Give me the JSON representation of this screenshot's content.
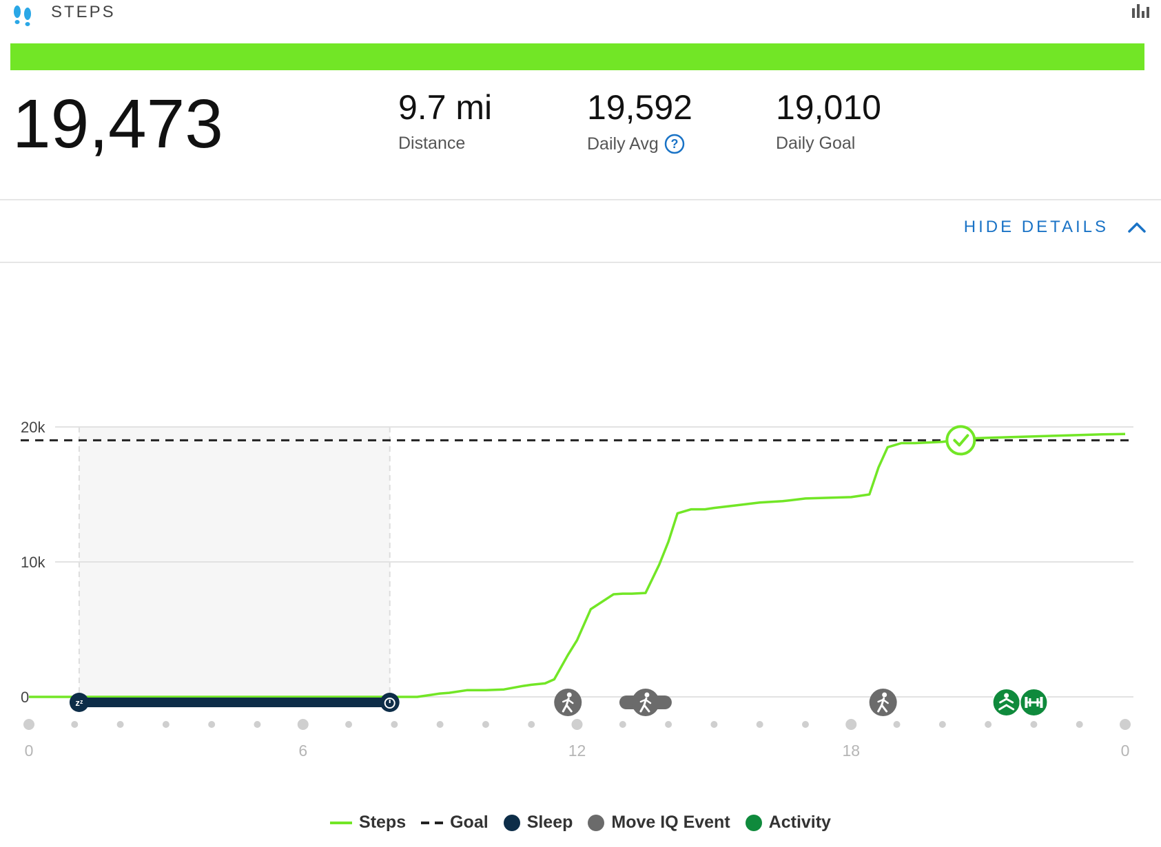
{
  "header": {
    "title": "STEPS",
    "icon": "footprints-icon",
    "chart_toggle_icon": "bar-chart-icon"
  },
  "progress": {
    "fraction": 1.0,
    "color": "#72e626"
  },
  "summary": {
    "total_steps": "19,473",
    "distance": {
      "value": "9.7 mi",
      "label": "Distance"
    },
    "daily_avg": {
      "value": "19,592",
      "label": "Daily Avg"
    },
    "daily_goal": {
      "value": "19,010",
      "label": "Daily Goal"
    }
  },
  "details_toggle": {
    "label": "HIDE DETAILS"
  },
  "colors": {
    "steps": "#72e626",
    "goal": "#222222",
    "sleep": "#0d2d48",
    "moveiq": "#6b6b6b",
    "activity": "#0f8a3c",
    "accent": "#1a73c6"
  },
  "chart_data": {
    "type": "line",
    "x": [
      0,
      1,
      1.5,
      5,
      8,
      8.5,
      8.8,
      9,
      9.2,
      9.6,
      10,
      10.4,
      10.8,
      11,
      11.3,
      11.5,
      11.8,
      12,
      12.3,
      12.8,
      13,
      13.2,
      13.5,
      13.8,
      14,
      14.2,
      14.5,
      14.8,
      15,
      15.5,
      16,
      16.5,
      17,
      17.5,
      18,
      18.4,
      18.6,
      18.8,
      19.1,
      19.4,
      20,
      20.6,
      21,
      21.5,
      22,
      22.5,
      23,
      23.5,
      24
    ],
    "series": [
      {
        "name": "Steps",
        "values": [
          0,
          0,
          0,
          0,
          0,
          0,
          150,
          250,
          300,
          500,
          500,
          550,
          800,
          900,
          1000,
          1300,
          3100,
          4200,
          6500,
          7600,
          7650,
          7650,
          7700,
          9800,
          11500,
          13600,
          13900,
          13900,
          14000,
          14200,
          14400,
          14500,
          14700,
          14750,
          14800,
          15000,
          17000,
          18500,
          18800,
          18800,
          18900,
          19150,
          19200,
          19250,
          19300,
          19350,
          19400,
          19450,
          19473
        ]
      }
    ],
    "goal": 19010,
    "goal_reached_hour": 20.4,
    "sleep": {
      "start": 1.1,
      "end": 7.9
    },
    "move_iq_events": [
      {
        "hour": 11.8,
        "icon": "walking-icon"
      },
      {
        "hour": 13.5,
        "icon": "elliptical-icon"
      },
      {
        "hour": 18.7,
        "icon": "walking-icon"
      }
    ],
    "activities": [
      {
        "hour": 21.4,
        "icon": "yoga-icon"
      },
      {
        "hour": 22.0,
        "icon": "strength-icon"
      }
    ],
    "y_ticks": [
      "0",
      "10k",
      "20k"
    ],
    "y_tick_values": [
      0,
      10000,
      20000
    ],
    "x_ticks": [
      "0",
      "6",
      "12",
      "18",
      "0"
    ],
    "x_tick_hours": [
      0,
      6,
      12,
      18,
      24
    ],
    "xlim": [
      0,
      24
    ],
    "ylim": [
      0,
      20000
    ],
    "grid": true,
    "legend": [
      "Steps",
      "Goal",
      "Sleep",
      "Move IQ Event",
      "Activity"
    ],
    "legend_position": "bottom"
  }
}
